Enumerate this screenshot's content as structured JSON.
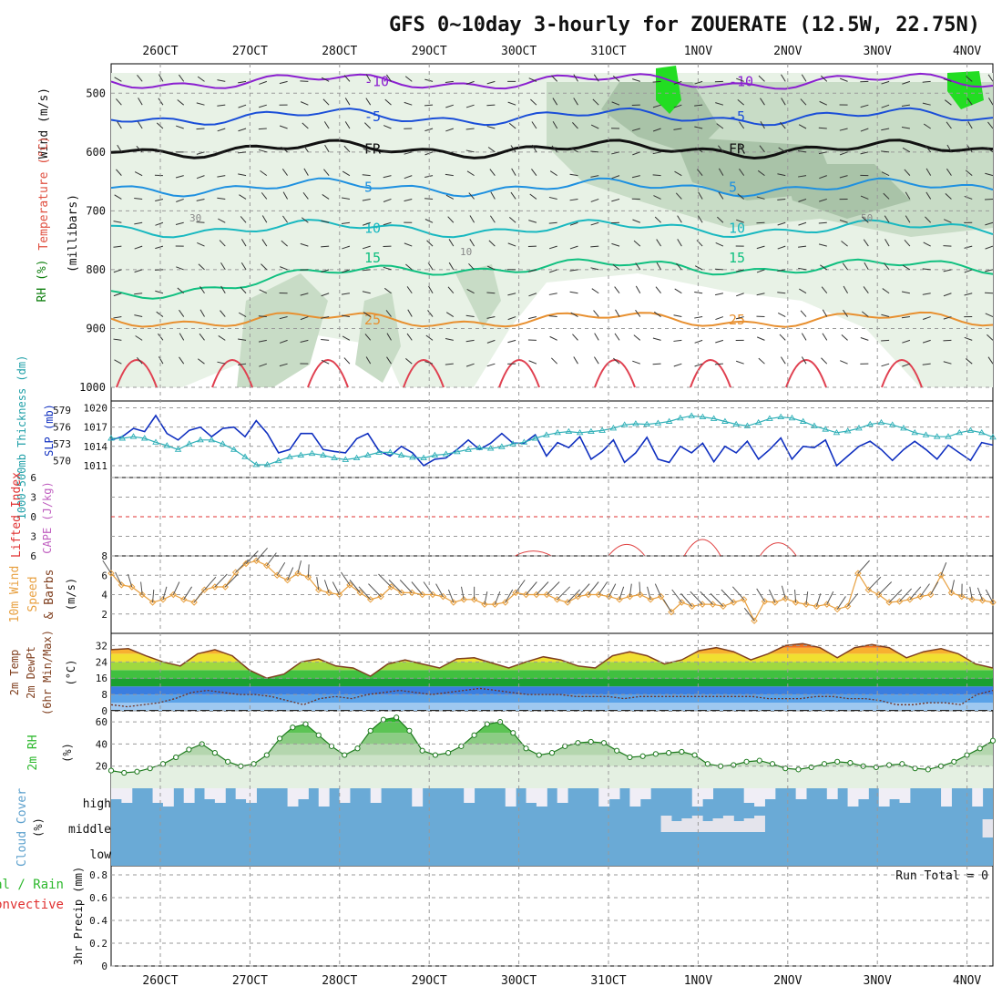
{
  "title": "GFS 0~10day 3-hourly for ZOUERATE (12.5W, 22.75N)",
  "dates": [
    "26OCT",
    "27OCT",
    "28OCT",
    "29OCT",
    "30OCT",
    "31OCT",
    "1NOV",
    "2NOV",
    "3NOV",
    "4NOV"
  ],
  "colors": {
    "rh_light": "#e8f2e6",
    "rh_mid": "#c8dcc6",
    "rh_dark": "#a9c3a8",
    "rh_bright": "#22dd22",
    "slp": "#1030c0",
    "thickness": "#30b0b8",
    "wind10": "#e8a040",
    "temp_line": "#804020",
    "cloud": "#6aaad6",
    "cloud_gap": "#f0eef6",
    "rh2m": "#2db82d",
    "grid": "#9a9a9a"
  },
  "chart_data": [
    {
      "type": "line",
      "panel": "upper-air",
      "labels": {
        "wind": "Wind (m/s)",
        "temperature": "Temperature (°C)",
        "rh": "RH (%)",
        "axis": "(millibars)"
      },
      "y_ticks": [
        500,
        600,
        700,
        800,
        900,
        1000
      ],
      "ylim": [
        1000,
        450
      ],
      "isotherms": [
        {
          "label": "-10",
          "p": 480
        },
        {
          "label": "-5",
          "p": 540
        },
        {
          "label": "FR",
          "p": 595
        },
        {
          "label": "5",
          "p": 660
        },
        {
          "label": "10",
          "p": 730
        },
        {
          "label": "15",
          "p": 780
        },
        {
          "label": "25",
          "p": 885
        }
      ],
      "rh_contour_labels": [
        "30",
        "50",
        "10"
      ]
    },
    {
      "type": "line",
      "panel": "slp-thickness",
      "labels": {
        "thickness": "1000-500mb Thickness (dm)",
        "slp": "SLP (mb)"
      },
      "left_ticks": [
        570,
        573,
        576,
        579
      ],
      "right_ticks": [
        1011,
        1014,
        1017,
        1020
      ],
      "series": [
        {
          "name": "SLP (mb)",
          "values": [
            1015.0,
            1015.5,
            1016.8,
            1016.3,
            1018.8,
            1016.0,
            1015.0,
            1016.5,
            1017.0,
            1015.5,
            1016.8,
            1017.0,
            1015.5,
            1018.0,
            1016.0,
            1013.0,
            1013.5,
            1016.0,
            1016.0,
            1013.5,
            1013.2,
            1013.0,
            1015.2,
            1016.0,
            1013.3,
            1012.5,
            1014.0,
            1013.0,
            1011.0,
            1012.0,
            1012.2,
            1013.5,
            1015.0,
            1013.5,
            1014.5,
            1016.0,
            1014.5,
            1014.5,
            1015.8,
            1012.5,
            1014.6,
            1013.8,
            1015.5,
            1012.0,
            1013.2,
            1015.0,
            1011.5,
            1013.0,
            1015.4,
            1012.0,
            1011.5,
            1014.0,
            1013.0,
            1014.5,
            1011.6,
            1014.0,
            1013.0,
            1014.8,
            1012.0,
            1013.5,
            1015.3,
            1012.0,
            1014.0,
            1013.8,
            1015.0,
            1011.0,
            1012.5,
            1014.0,
            1014.8,
            1013.5,
            1011.8,
            1013.5,
            1014.8,
            1013.5,
            1012.0,
            1014.2,
            1013.0,
            1011.8,
            1014.6,
            1014.2
          ]
        },
        {
          "name": "1000-500mb Thickness (dm)",
          "values": [
            574.0,
            574.0,
            574.3,
            574.0,
            573.3,
            572.7,
            572.0,
            573.0,
            573.7,
            573.7,
            573.0,
            572.0,
            570.7,
            569.3,
            569.3,
            570.0,
            570.7,
            571.0,
            571.3,
            571.0,
            570.5,
            570.2,
            570.5,
            571.0,
            571.5,
            571.5,
            571.0,
            570.6,
            570.5,
            571.0,
            571.2,
            571.6,
            572.0,
            572.3,
            572.2,
            572.5,
            573.0,
            573.3,
            574.0,
            574.6,
            575.0,
            575.2,
            575.0,
            575.2,
            575.4,
            575.8,
            576.4,
            576.6,
            576.5,
            576.7,
            577.0,
            577.6,
            578.0,
            577.8,
            577.5,
            577.0,
            576.5,
            576.2,
            576.8,
            577.5,
            577.8,
            577.6,
            577.0,
            576.2,
            575.6,
            575.0,
            575.3,
            575.8,
            576.5,
            576.8,
            576.4,
            575.8,
            575.0,
            574.6,
            574.3,
            574.3,
            575.0,
            575.4,
            575.0,
            574.2
          ]
        }
      ]
    },
    {
      "type": "line",
      "panel": "stability",
      "labels": {
        "li": "Lifted Index",
        "cape": "CAPE (J/kg)"
      },
      "y_ticks": [
        -6,
        -3,
        0,
        3,
        6
      ],
      "ylim": [
        6,
        -6
      ],
      "ylim_label_order": [
        "6",
        "3",
        "0",
        "3",
        "6"
      ],
      "cape_peaks": [
        {
          "x": 40.7,
          "h": 0.3
        },
        {
          "x": 49.7,
          "h": 0.7
        },
        {
          "x": 57.0,
          "h": 1.0
        },
        {
          "x": 64.3,
          "h": 0.8
        }
      ]
    },
    {
      "type": "line",
      "panel": "wind10m",
      "labels": {
        "wind": "10m Wind",
        "speed": "Speed",
        "barbs": "& Barbs",
        "units": "(m/s)"
      },
      "y_ticks": [
        2,
        4,
        6,
        8
      ],
      "ylim": [
        0,
        8
      ],
      "series": [
        {
          "name": "Speed",
          "values": [
            6.2,
            5.0,
            4.8,
            4.0,
            3.2,
            3.5,
            4.0,
            3.5,
            3.2,
            4.5,
            4.8,
            4.8,
            6.3,
            7.2,
            7.5,
            7.0,
            6.0,
            5.5,
            6.2,
            5.8,
            4.5,
            4.2,
            4.0,
            5.0,
            4.2,
            3.5,
            3.8,
            4.8,
            4.2,
            4.2,
            4.0,
            4.0,
            3.8,
            3.2,
            3.5,
            3.5,
            3.0,
            3.0,
            3.2,
            4.2,
            4.0,
            4.0,
            4.0,
            3.5,
            3.2,
            3.8,
            4.0,
            4.0,
            3.8,
            3.5,
            3.8,
            4.0,
            3.5,
            3.8,
            2.2,
            3.2,
            2.8,
            3.0,
            3.0,
            2.8,
            3.2,
            3.5,
            1.3,
            3.3,
            3.2,
            3.6,
            3.2,
            3.0,
            2.8,
            3.0,
            2.5,
            2.8,
            6.2,
            4.5,
            4.0,
            3.2,
            3.3,
            3.5,
            3.8,
            4.0,
            6.0,
            4.2,
            3.8,
            3.5,
            3.4,
            3.2
          ]
        }
      ]
    },
    {
      "type": "area",
      "panel": "temperature",
      "labels": {
        "temp": "2m Temp",
        "dewpt": "2m DewPt",
        "minmax": "(6hr Min/Max)",
        "units": "(°C)"
      },
      "y_ticks": [
        0,
        8,
        16,
        24,
        32
      ],
      "ylim": [
        0,
        38
      ],
      "series": [
        {
          "name": "2m Temp",
          "values": [
            30,
            30.5,
            27,
            24,
            22,
            28,
            30,
            27,
            20,
            16,
            18,
            24,
            25.5,
            22,
            21,
            17,
            23,
            25,
            23,
            21,
            25.5,
            26,
            23.5,
            21,
            24,
            26.5,
            25,
            22,
            21,
            27,
            29,
            27,
            23,
            25,
            29.5,
            31,
            29,
            25,
            28,
            32,
            33,
            31,
            26,
            31,
            32.5,
            31,
            26,
            29,
            30.5,
            28,
            23,
            21
          ]
        },
        {
          "name": "2m DewPt",
          "values": [
            3,
            2,
            3,
            4,
            6,
            9,
            10,
            9,
            8,
            8,
            7,
            5,
            3,
            6,
            7,
            6,
            8,
            9,
            10,
            9,
            8,
            9,
            10,
            11,
            10,
            9,
            8,
            8,
            8,
            7,
            7,
            7,
            6,
            7,
            7,
            7,
            7,
            7,
            7,
            7,
            7,
            6,
            6,
            6,
            7,
            7,
            6,
            6,
            5,
            3,
            3,
            4,
            4,
            3,
            8,
            10
          ]
        }
      ]
    },
    {
      "type": "area",
      "panel": "rh2m",
      "labels": {
        "rh": "2m RH",
        "units": "(%)"
      },
      "y_ticks": [
        20,
        40,
        60
      ],
      "ylim": [
        0,
        70
      ],
      "series": [
        {
          "name": "2m RH",
          "values": [
            16,
            14,
            15,
            18,
            22,
            28,
            35,
            40,
            32,
            24,
            20,
            22,
            30,
            45,
            55,
            58,
            48,
            38,
            30,
            36,
            52,
            62,
            64,
            52,
            34,
            30,
            32,
            38,
            48,
            58,
            60,
            50,
            36,
            30,
            32,
            38,
            41,
            42,
            41,
            34,
            28,
            29,
            31,
            32,
            33,
            30,
            22,
            20,
            21,
            24,
            25,
            22,
            18,
            17,
            19,
            22,
            24,
            23,
            20,
            19,
            21,
            22,
            18,
            17,
            20,
            24,
            30,
            36,
            43
          ]
        }
      ]
    },
    {
      "type": "bar",
      "panel": "cloud",
      "labels": {
        "cloud": "Cloud Cover",
        "units": "(%)",
        "high": "high",
        "middle": "middle",
        "low": "low"
      }
    },
    {
      "type": "bar",
      "panel": "precip",
      "labels": {
        "total": "Total / Rain",
        "convective": "Convective",
        "axis": "3hr Precip (mm)",
        "run_total": "Run Total = 0"
      },
      "y_ticks": [
        "0",
        "0.2",
        "0.4",
        "0.6",
        "0.8"
      ],
      "ylim": [
        0,
        0.88
      ],
      "values": []
    }
  ]
}
